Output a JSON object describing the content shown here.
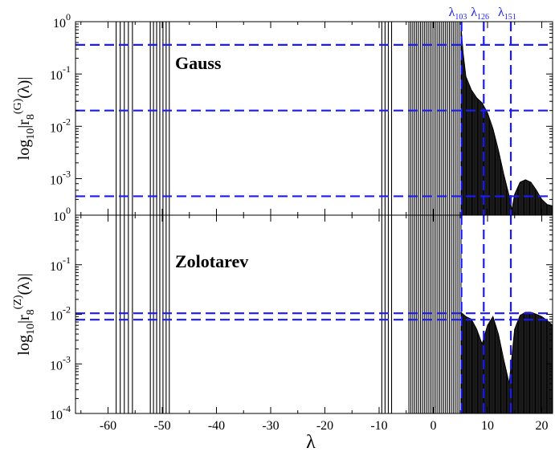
{
  "chart_data": [
    {
      "type": "line",
      "title": "Gauss",
      "ylabel": "log10|r8(G)(λ)|",
      "ylabel_parts": {
        "pre": "log",
        "sub1": "10",
        "mid": "|r",
        "sub2": "8",
        "sup": "(G)",
        "post": "(λ)|"
      },
      "xlim": [
        -66,
        22
      ],
      "ylim": [
        0.0002,
        1
      ],
      "yscale": "log",
      "y_ticks": [
        {
          "v": 1,
          "m": "10",
          "e": "0"
        },
        {
          "v": 0.1,
          "m": "10",
          "e": "-1"
        },
        {
          "v": 0.01,
          "m": "10",
          "e": "-2"
        },
        {
          "v": 0.001,
          "m": "10",
          "e": "-3"
        }
      ],
      "reference_levels": [
        0.36,
        0.02,
        0.00046
      ],
      "oscillation_clusters": [
        {
          "from": -58.5,
          "to": -55.5,
          "lines": 5
        },
        {
          "from": -52.2,
          "to": -48.7,
          "lines": 7
        },
        {
          "from": -9.5,
          "to": -7.7,
          "lines": 4
        },
        {
          "from": -4.5,
          "to": 5.1,
          "lines": 28
        }
      ],
      "envelope": [
        [
          5.1,
          0.8
        ],
        [
          5.5,
          0.25
        ],
        [
          6,
          0.09
        ],
        [
          7,
          0.05
        ],
        [
          8,
          0.035
        ],
        [
          9,
          0.028
        ],
        [
          10,
          0.018
        ],
        [
          11,
          0.009
        ],
        [
          12,
          0.0035
        ],
        [
          13,
          0.0012
        ],
        [
          14,
          0.00046
        ],
        [
          14.5,
          0.00025
        ],
        [
          15,
          0.0005
        ],
        [
          16,
          0.00085
        ],
        [
          17,
          0.00095
        ],
        [
          18,
          0.00085
        ],
        [
          19,
          0.0006
        ],
        [
          20,
          0.0004
        ],
        [
          21,
          0.00032
        ],
        [
          22,
          0.0003
        ]
      ],
      "vertical_markers": [
        {
          "x": 5.2,
          "label": "λ",
          "sub": "103"
        },
        {
          "x": 9.3,
          "label": "λ",
          "sub": "126"
        },
        {
          "x": 14.3,
          "label": "λ",
          "sub": "151"
        }
      ]
    },
    {
      "type": "line",
      "title": "Zolotarev",
      "ylabel": "log10|r8(Z)(λ)|",
      "ylabel_parts": {
        "pre": "log",
        "sub1": "10",
        "mid": "|r",
        "sub2": "8",
        "sup": "(Z)",
        "post": "(λ)|"
      },
      "xlabel": "λ",
      "xlim": [
        -66,
        22
      ],
      "ylim": [
        0.0001,
        1
      ],
      "yscale": "log",
      "x_ticks": [
        -60,
        -50,
        -40,
        -30,
        -20,
        -10,
        0,
        10,
        20
      ],
      "y_ticks": [
        {
          "v": 1,
          "m": "10",
          "e": "0"
        },
        {
          "v": 0.1,
          "m": "10",
          "e": "-1"
        },
        {
          "v": 0.01,
          "m": "10",
          "e": "-2"
        },
        {
          "v": 0.001,
          "m": "10",
          "e": "-3"
        },
        {
          "v": 0.0001,
          "m": "10",
          "e": "-4"
        }
      ],
      "reference_levels": [
        0.0105,
        0.0078
      ],
      "oscillation_clusters": [
        {
          "from": -58.5,
          "to": -55.5,
          "lines": 5
        },
        {
          "from": -52.2,
          "to": -48.7,
          "lines": 7
        },
        {
          "from": -9.5,
          "to": -7.7,
          "lines": 4
        },
        {
          "from": -4.5,
          "to": 5.1,
          "lines": 28
        }
      ],
      "envelope": [
        [
          5.1,
          0.011
        ],
        [
          6,
          0.009
        ],
        [
          7,
          0.008
        ],
        [
          8,
          0.005
        ],
        [
          9,
          0.0025
        ],
        [
          10,
          0.006
        ],
        [
          11,
          0.009
        ],
        [
          12,
          0.004
        ],
        [
          13,
          0.0012
        ],
        [
          14,
          0.0004
        ],
        [
          15,
          0.005
        ],
        [
          16,
          0.0095
        ],
        [
          17,
          0.011
        ],
        [
          18,
          0.011
        ],
        [
          19,
          0.01
        ],
        [
          20,
          0.009
        ],
        [
          21,
          0.0075
        ],
        [
          22,
          0.006
        ]
      ],
      "vertical_markers": [
        {
          "x": 5.2
        },
        {
          "x": 9.3
        },
        {
          "x": 14.3
        }
      ]
    }
  ],
  "colors": {
    "lines": "#000000",
    "markers": "#1a1aff"
  }
}
